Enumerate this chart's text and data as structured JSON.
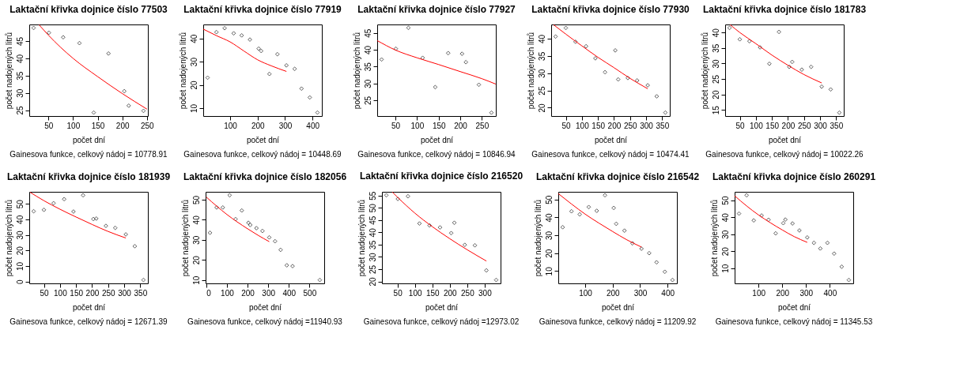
{
  "chart_data": [
    {
      "type": "scatter",
      "title": "Laktační křivka dojnice číslo 77503",
      "xlabel": "počet dní",
      "ylabel": "počet nadojených litrů",
      "annotations": [
        "Gainesova funkce, celkový nádoj = 10778.91"
      ],
      "xlim": [
        11.1,
        251.9
      ],
      "ylim": [
        23.3,
        49.8
      ],
      "xticks": [
        50,
        100,
        150,
        200,
        250
      ],
      "yticks": [
        25,
        30,
        35,
        40,
        45
      ],
      "series": [
        {
          "type": "scatter",
          "marker": "diamond",
          "color": "#000000",
          "x": [
            20,
            51,
            80,
            113,
            142,
            172,
            204,
            213,
            243
          ],
          "values": [
            48.8,
            47.4,
            46.1,
            44.4,
            24.3,
            41.4,
            30.5,
            26.3,
            24.8
          ]
        },
        {
          "type": "line",
          "marker": "none",
          "color": "#ff0000",
          "x": [
            31,
            50,
            100,
            150,
            200,
            250
          ],
          "values": [
            49.7,
            46.7,
            40.0,
            34.7,
            29.8,
            25.3
          ]
        }
      ]
    },
    {
      "type": "scatter",
      "title": "Laktační křivka dojnice číslo 77919",
      "xlabel": "počet dní",
      "ylabel": "počet nadojených litrů",
      "annotations": [
        "Gainesova funkce, celkový nádoj = 10448.69"
      ],
      "xlim": [
        2,
        434
      ],
      "ylim": [
        6.6,
        46
      ],
      "xticks": [
        100,
        200,
        300,
        400
      ],
      "yticks": [
        10,
        20,
        30,
        40
      ],
      "series": [
        {
          "type": "scatter",
          "marker": "diamond",
          "color": "#000000",
          "x": [
            18,
            50,
            80,
            113,
            142,
            172,
            204,
            213,
            243,
            272,
            305,
            335,
            360,
            390,
            418
          ],
          "values": [
            23.1,
            42.7,
            44.4,
            42.2,
            41.3,
            39.5,
            35.6,
            34.6,
            24.7,
            33.2,
            28.4,
            26.9,
            18.4,
            14.6,
            8.1
          ]
        },
        {
          "type": "line",
          "marker": "none",
          "color": "#ff0000",
          "x": [
            2,
            50,
            100,
            150,
            200,
            250,
            305
          ],
          "values": [
            44.0,
            41.2,
            38.5,
            34.6,
            30.8,
            28.2,
            25.8
          ]
        }
      ]
    },
    {
      "type": "scatter",
      "title": "Laktační křivka dojnice číslo 77927",
      "xlabel": "počet dní",
      "ylabel": "počet nadojených litrů",
      "annotations": [
        "Gainesova funkce, celkový nádoj = 10846.94"
      ],
      "xlim": [
        7.8,
        282.2
      ],
      "ylim": [
        20.3,
        47.5
      ],
      "xticks": [
        50,
        100,
        150,
        200,
        250
      ],
      "yticks": [
        25,
        30,
        35,
        40,
        45
      ],
      "series": [
        {
          "type": "scatter",
          "marker": "diamond",
          "color": "#000000",
          "x": [
            18,
            51,
            80,
            113,
            142,
            172,
            204,
            213,
            243,
            272
          ],
          "values": [
            37.1,
            40.3,
            46.5,
            37.6,
            28.9,
            39.0,
            38.8,
            36.3,
            29.6,
            21.3
          ]
        },
        {
          "type": "line",
          "marker": "none",
          "color": "#ff0000",
          "x": [
            8,
            50,
            100,
            150,
            200,
            250,
            282
          ],
          "values": [
            42.7,
            39.9,
            37.6,
            35.6,
            33.5,
            31.4,
            29.8
          ]
        }
      ]
    },
    {
      "type": "scatter",
      "title": "Laktační křivka dojnice číslo 77930",
      "xlabel": "počet dní",
      "ylabel": "počet nadojených litrů",
      "annotations": [
        "Gainesova funkce, celkový nádoj = 10474.41"
      ],
      "xlim": [
        4.3,
        373.7
      ],
      "ylim": [
        17.6,
        44.1
      ],
      "xticks": [
        50,
        100,
        150,
        200,
        250,
        300,
        350
      ],
      "yticks": [
        20,
        25,
        30,
        35,
        40
      ],
      "series": [
        {
          "type": "scatter",
          "marker": "diamond",
          "color": "#000000",
          "x": [
            18,
            50,
            80,
            113,
            142,
            172,
            204,
            213,
            243,
            272,
            305,
            333,
            360
          ],
          "values": [
            40.6,
            43.1,
            39.1,
            37.8,
            34.3,
            30.3,
            36.6,
            28.2,
            28.6,
            27.9,
            26.5,
            23.3,
            18.6
          ]
        },
        {
          "type": "line",
          "marker": "none",
          "color": "#ff0000",
          "x": [
            12,
            50,
            100,
            150,
            200,
            250,
            305
          ],
          "values": [
            44.0,
            41.3,
            37.9,
            34.6,
            31.6,
            28.5,
            25.5
          ]
        }
      ]
    },
    {
      "type": "scatter",
      "title": "Laktační křivka dojnice číslo 181783",
      "xlabel": "počet dní",
      "ylabel": "počet nadojených litrů",
      "annotations": [
        "Gainesova funkce, celkový nádoj = 10022.26"
      ],
      "xlim": [
        4.3,
        373.7
      ],
      "ylim": [
        13.0,
        42.6
      ],
      "xticks": [
        50,
        100,
        150,
        200,
        250,
        300,
        350
      ],
      "yticks": [
        15,
        20,
        25,
        30,
        35,
        40
      ],
      "series": [
        {
          "type": "scatter",
          "marker": "diamond",
          "color": "#000000",
          "x": [
            18,
            50,
            80,
            113,
            142,
            172,
            204,
            213,
            243,
            272,
            305,
            333,
            360
          ],
          "values": [
            41.5,
            37.8,
            37.2,
            35.2,
            29.9,
            40.2,
            28.9,
            30.5,
            28.0,
            28.9,
            22.5,
            21.6,
            14.1
          ]
        },
        {
          "type": "line",
          "marker": "none",
          "color": "#ff0000",
          "x": [
            20,
            50,
            100,
            150,
            200,
            250,
            305
          ],
          "values": [
            42.5,
            40.0,
            36.4,
            32.7,
            29.4,
            26.4,
            23.7
          ]
        }
      ]
    },
    {
      "type": "scatter",
      "title": "Laktační křivka dojnice číslo 181939",
      "xlabel": "počet dní",
      "ylabel": "počet nadojených litrů",
      "annotations": [
        "Gainesova funkce, celkový nádoj = 12671.39"
      ],
      "xlim": [
        4.3,
        373.7
      ],
      "ylim": [
        -1.2,
        57.7
      ],
      "xticks": [
        50,
        100,
        150,
        200,
        250,
        300,
        350
      ],
      "yticks": [
        0,
        10,
        20,
        30,
        40,
        50
      ],
      "series": [
        {
          "type": "scatter",
          "marker": "diamond",
          "color": "#000000",
          "x": [
            18,
            50,
            80,
            113,
            142,
            172,
            204,
            213,
            243,
            272,
            305,
            333,
            360
          ],
          "values": [
            45.2,
            46.1,
            50.4,
            53.0,
            45.0,
            55.5,
            40.2,
            40.5,
            35.8,
            34.5,
            30.3,
            22.7,
            1.0
          ]
        },
        {
          "type": "line",
          "marker": "none",
          "color": "#ff0000",
          "x": [
            7,
            50,
            100,
            150,
            200,
            250,
            305
          ],
          "values": [
            57.4,
            52.0,
            46.5,
            41.5,
            36.7,
            32.2,
            28.0
          ]
        }
      ]
    },
    {
      "type": "scatter",
      "title": "Laktační křivka dojnice číslo 182056",
      "xlabel": "počet dní",
      "ylabel": "počet nadojených litrů",
      "annotations": [
        "Gainesova funkce, celkový nádoj =11940.93"
      ],
      "xlim": [
        -3.3,
        571.3
      ],
      "ylim": [
        8.3,
        53.9
      ],
      "xticks": [
        0,
        100,
        200,
        300,
        400,
        500
      ],
      "yticks": [
        10,
        20,
        30,
        40,
        50
      ],
      "series": [
        {
          "type": "scatter",
          "marker": "diamond",
          "color": "#000000",
          "x": [
            18,
            50,
            80,
            113,
            142,
            172,
            204,
            213,
            243,
            272,
            305,
            333,
            360,
            390,
            418,
            550
          ],
          "values": [
            33.5,
            46.1,
            46.1,
            52.2,
            40.3,
            44.6,
            38.5,
            37.4,
            35.8,
            34.4,
            31.2,
            29.3,
            25.0,
            17.3,
            16.9,
            10.0
          ]
        },
        {
          "type": "line",
          "marker": "none",
          "color": "#ff0000",
          "x": [
            0,
            50,
            100,
            150,
            200,
            250,
            305
          ],
          "values": [
            51.3,
            46.8,
            42.6,
            38.9,
            35.5,
            32.3,
            29.1
          ]
        }
      ]
    },
    {
      "type": "scatter",
      "title": "Laktační křivka dojnice číslo 216520",
      "xlabel": "počet dní",
      "ylabel": "počet nadojených litrů",
      "annotations": [
        "Gainesova funkce, celkový nádoj =12973.02"
      ],
      "xlim": [
        5.4,
        345.6
      ],
      "ylim": [
        19.2,
        56.5
      ],
      "xticks": [
        50,
        100,
        150,
        200,
        250,
        300
      ],
      "yticks": [
        20,
        25,
        30,
        35,
        40,
        45,
        50,
        55
      ],
      "series": [
        {
          "type": "scatter",
          "marker": "diamond",
          "color": "#000000",
          "x": [
            18,
            51,
            80,
            113,
            142,
            172,
            204,
            213,
            243,
            272,
            305,
            333
          ],
          "values": [
            55.1,
            53.6,
            54.7,
            43.6,
            42.8,
            42.0,
            39.7,
            43.9,
            34.9,
            34.7,
            24.5,
            20.6
          ]
        },
        {
          "type": "line",
          "marker": "none",
          "color": "#ff0000",
          "x": [
            35,
            50,
            100,
            150,
            200,
            250,
            305
          ],
          "values": [
            56.4,
            54.3,
            47.8,
            42.3,
            37.4,
            32.9,
            28.3
          ]
        }
      ]
    },
    {
      "type": "scatter",
      "title": "Laktační křivka dojnice číslo 216542",
      "xlabel": "počet dní",
      "ylabel": "počet nadojených litrů",
      "annotations": [
        "Gainesova funkce, celkový nádoj = 11209.92"
      ],
      "xlim": [
        2,
        434
      ],
      "ylim": [
        3.1,
        54.3
      ],
      "xticks": [
        100,
        200,
        300,
        400
      ],
      "yticks": [
        10,
        20,
        30,
        40,
        50
      ],
      "series": [
        {
          "type": "scatter",
          "marker": "diamond",
          "color": "#000000",
          "x": [
            18,
            50,
            80,
            113,
            142,
            172,
            204,
            213,
            243,
            272,
            305,
            333,
            360,
            390,
            418
          ],
          "values": [
            34.5,
            43.4,
            41.7,
            45.8,
            43.7,
            52.4,
            45.3,
            36.4,
            32.6,
            25.5,
            22.5,
            20.0,
            14.9,
            9.6,
            5.0
          ]
        },
        {
          "type": "line",
          "marker": "none",
          "color": "#ff0000",
          "x": [
            2,
            50,
            100,
            150,
            200,
            250,
            305
          ],
          "values": [
            53.3,
            47.5,
            41.8,
            36.8,
            32.1,
            27.6,
            23.4
          ]
        }
      ]
    },
    {
      "type": "scatter",
      "title": "Laktační křivka dojnice číslo 260291",
      "xlabel": "počet dní",
      "ylabel": "počet nadojených litrů",
      "annotations": [
        "Gainesova funkce, celkový nádoj = 11345.53"
      ],
      "xlim": [
        -0.5,
        498.5
      ],
      "ylim": [
        1.1,
        54.9
      ],
      "xticks": [
        100,
        200,
        300,
        400
      ],
      "yticks": [
        10,
        20,
        30,
        40,
        50
      ],
      "series": [
        {
          "type": "scatter",
          "marker": "diamond",
          "color": "#000000",
          "x": [
            18,
            50,
            80,
            113,
            142,
            172,
            204,
            213,
            243,
            272,
            305,
            333,
            360,
            390,
            418,
            450,
            480
          ],
          "values": [
            42.1,
            52.9,
            38.1,
            41.0,
            38.5,
            30.5,
            36.5,
            38.6,
            36.3,
            32.2,
            28.1,
            24.9,
            21.6,
            24.9,
            18.6,
            10.9,
            3.1
          ]
        },
        {
          "type": "line",
          "marker": "none",
          "color": "#ff0000",
          "x": [
            0,
            50,
            100,
            150,
            200,
            250,
            305
          ],
          "values": [
            52.5,
            46.6,
            41.3,
            36.7,
            32.5,
            28.6,
            25.2
          ]
        }
      ]
    }
  ]
}
